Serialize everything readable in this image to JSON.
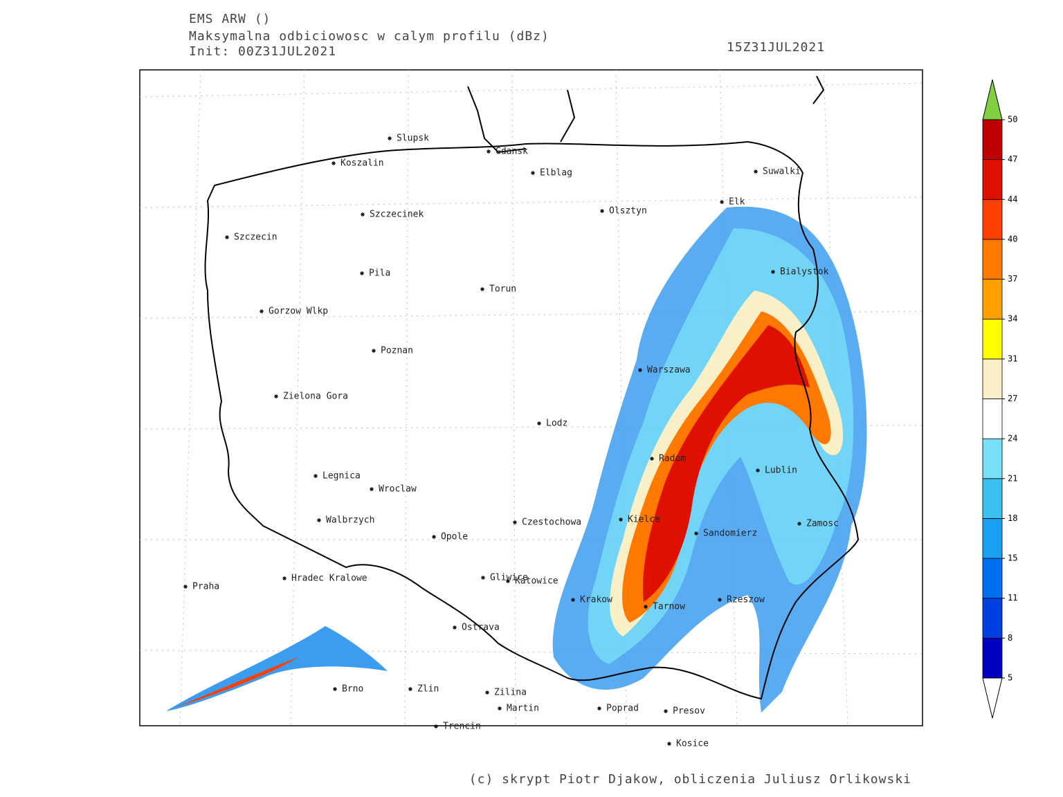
{
  "header": {
    "model": "EMS ARW ()",
    "field": "Maksymalna odbiciowosc w calym profilu (dBz)",
    "init": "Init: 00Z31JUL2021",
    "valid": "15Z31JUL2021"
  },
  "cities": [
    "Slupsk",
    "Koszalin",
    "Gdansk",
    "Elblag",
    "Suwalki",
    "Elk",
    "Olsztyn",
    "Szczecinek",
    "Szczecin",
    "Pila",
    "Torun",
    "Bialystok",
    "Gorzow Wlkp",
    "Poznan",
    "Warszawa",
    "Zielona Gora",
    "Lodz",
    "Radom",
    "Lublin",
    "Legnica",
    "Wroclaw",
    "Kielce",
    "Walbrzych",
    "Czestochowa",
    "Zamosc",
    "Sandomierz",
    "Opole",
    "Praha",
    "Hradec Kralowe",
    "Gliwice",
    "Katowice",
    "Krakow",
    "Rzeszow",
    "Tarnow",
    "Ostrava",
    "Brno",
    "Zlin",
    "Zilina",
    "Martin",
    "Poprad",
    "Presov",
    "Trencin",
    "Kosice"
  ],
  "colorbar": {
    "levels": [
      5,
      8,
      11,
      15,
      18,
      21,
      24,
      27,
      31,
      34,
      37,
      40,
      44,
      47,
      50
    ],
    "colors": [
      "#0000c0",
      "#0040e0",
      "#0070f0",
      "#1aa0f0",
      "#3cc0f0",
      "#78e0f8",
      "#ffffff",
      "#faf0c8",
      "#ffff00",
      "#ffa000",
      "#ff7800",
      "#ff4000",
      "#e01000",
      "#c00000"
    ],
    "over_color": "#80d040",
    "under_color": "#ffffff"
  },
  "footer": "(c) skrypt Piotr Djakow, obliczenia Juliusz Orlikowski"
}
